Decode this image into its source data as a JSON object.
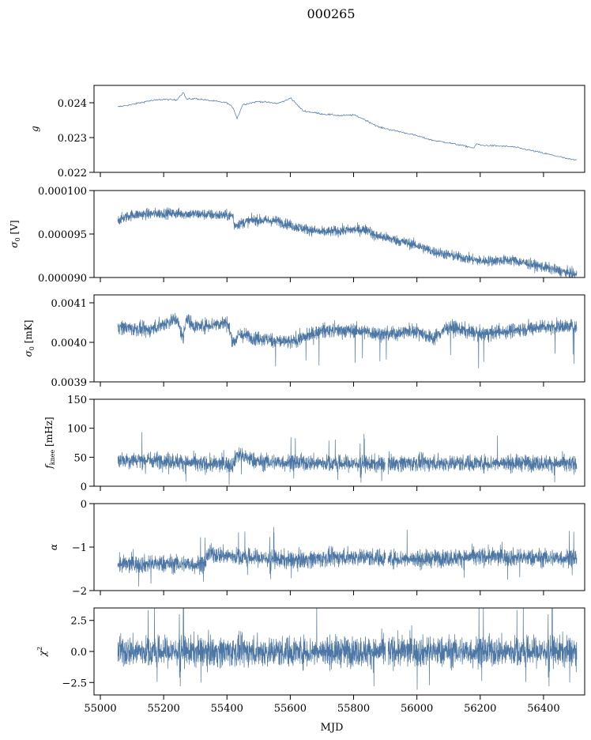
{
  "figure": {
    "title": "000265",
    "xlabel": "MJD",
    "xlim": [
      54980,
      56530
    ],
    "xticks": [
      55000,
      55200,
      55400,
      55600,
      55800,
      56000,
      56200,
      56400
    ],
    "line_color": "#4c76a4"
  },
  "chart_data": [
    {
      "type": "line",
      "ylabel": "g",
      "ylabel_html": {
        "base": "g",
        "sub": ""
      },
      "ylim": [
        0.022,
        0.0245
      ],
      "yticks": [
        0.022,
        0.023,
        0.024
      ],
      "ytick_labels": [
        "0.022",
        "0.023",
        "0.024"
      ],
      "series": [
        {
          "x": [
            55055,
            55100,
            55150,
            55200,
            55240,
            55262,
            55272,
            55300,
            55350,
            55400,
            55420,
            55432,
            55450,
            55500,
            55560,
            55590,
            55600,
            55640,
            55700,
            55760,
            55800,
            55830,
            55880,
            55930,
            55980,
            56020,
            56050,
            56100,
            56150,
            56180,
            56190,
            56200,
            56250,
            56300,
            56350,
            56400,
            56450,
            56480,
            56505
          ],
          "y": [
            0.02388,
            0.02395,
            0.02405,
            0.0241,
            0.02408,
            0.0243,
            0.0241,
            0.02412,
            0.02406,
            0.024,
            0.02385,
            0.02355,
            0.02395,
            0.02404,
            0.02398,
            0.02408,
            0.02415,
            0.02377,
            0.02368,
            0.02363,
            0.02365,
            0.02354,
            0.0233,
            0.0232,
            0.0231,
            0.023,
            0.02292,
            0.02285,
            0.02276,
            0.0227,
            0.02283,
            0.02278,
            0.02276,
            0.02274,
            0.02265,
            0.02255,
            0.02245,
            0.02238,
            0.02235
          ],
          "noise": 4e-05
        }
      ]
    },
    {
      "type": "line",
      "ylabel": "σ0 [V]",
      "ylabel_html": {
        "base": "σ",
        "sub": "0",
        "suffix": " [V]"
      },
      "ylim": [
        9e-05,
        0.0001
      ],
      "yticks": [
        9e-05,
        9.5e-05,
        0.0001
      ],
      "ytick_labels": [
        "0.000090",
        "0.000095",
        "0.000100"
      ],
      "series": [
        {
          "x": [
            55055,
            55100,
            55200,
            55300,
            55420,
            55422,
            55480,
            55560,
            55620,
            55700,
            55800,
            55850,
            55860,
            55900,
            56000,
            56050,
            56100,
            56200,
            56300,
            56400,
            56505
          ],
          "y": [
            9.66e-05,
            9.72e-05,
            9.74e-05,
            9.73e-05,
            9.71e-05,
            9.6e-05,
            9.66e-05,
            9.65e-05,
            9.58e-05,
            9.52e-05,
            9.55e-05,
            9.55e-05,
            9.49e-05,
            9.46e-05,
            9.37e-05,
            9.3e-05,
            9.26e-05,
            9.19e-05,
            9.2e-05,
            9.12e-05,
            9.03e-05
          ],
          "noise": 6e-07
        }
      ]
    },
    {
      "type": "line",
      "ylabel": "σ0 [mK]",
      "ylabel_html": {
        "base": "σ",
        "sub": "0",
        "suffix": " [mK]"
      },
      "ylim": [
        0.0039,
        0.00412
      ],
      "yticks": [
        0.0039,
        0.004,
        0.0041
      ],
      "ytick_labels": [
        "0.0039",
        "0.0040",
        "0.0041"
      ],
      "series": [
        {
          "x": [
            55055,
            55150,
            55240,
            55262,
            55270,
            55300,
            55400,
            55420,
            55440,
            55500,
            55600,
            55700,
            55800,
            55900,
            56000,
            56050,
            56100,
            56200,
            56300,
            56400,
            56505
          ],
          "y": [
            0.00404,
            0.00403,
            0.00406,
            0.00401,
            0.00406,
            0.00404,
            0.00405,
            0.004,
            0.00402,
            0.00401,
            0.004,
            0.00403,
            0.00403,
            0.00402,
            0.00403,
            0.00401,
            0.00404,
            0.00402,
            0.00403,
            0.00404,
            0.00404
          ],
          "noise": 1.8e-05
        }
      ]
    },
    {
      "type": "line",
      "ylabel": "fknee [mHz]",
      "ylabel_html": {
        "base": "f",
        "sub": "knee",
        "suffix": " [mHz]"
      },
      "ylim": [
        0,
        150
      ],
      "yticks": [
        0,
        50,
        100,
        150
      ],
      "ytick_labels": [
        "0",
        "50",
        "100",
        "150"
      ],
      "series": [
        {
          "x": [
            55055,
            55200,
            55330,
            55420,
            55430,
            55500,
            55700,
            55900,
            55910,
            56000,
            56200,
            56400,
            56505
          ],
          "y": [
            46,
            45,
            38,
            38,
            55,
            42,
            40,
            38,
            40,
            40,
            40,
            40,
            38
          ],
          "noise": 14
        }
      ]
    },
    {
      "type": "line",
      "ylabel": "α",
      "ylabel_html": {
        "base": "α",
        "sub": ""
      },
      "ylim": [
        -2,
        0
      ],
      "yticks": [
        -2,
        -1,
        0
      ],
      "ytick_labels": [
        "−2",
        "−1",
        "0"
      ],
      "series": [
        {
          "x": [
            55055,
            55200,
            55330,
            55340,
            55400,
            55500,
            55600,
            55800,
            55900,
            56000,
            56200,
            56400,
            56505
          ],
          "y": [
            -1.4,
            -1.38,
            -1.4,
            -1.15,
            -1.2,
            -1.25,
            -1.3,
            -1.22,
            -1.25,
            -1.28,
            -1.22,
            -1.25,
            -1.25
          ],
          "noise": 0.2
        }
      ]
    },
    {
      "type": "line",
      "ylabel": "χ2",
      "ylabel_html": {
        "base": "χ",
        "sup": "2",
        "sub": ""
      },
      "ylim": [
        -3.5,
        3.5
      ],
      "yticks": [
        -2.5,
        0,
        2.5
      ],
      "ytick_labels": [
        "−2.5",
        "0.0",
        "2.5"
      ],
      "series": [
        {
          "x": [
            55055,
            56505
          ],
          "y": [
            0,
            0
          ],
          "noise": 1.2
        }
      ]
    }
  ]
}
